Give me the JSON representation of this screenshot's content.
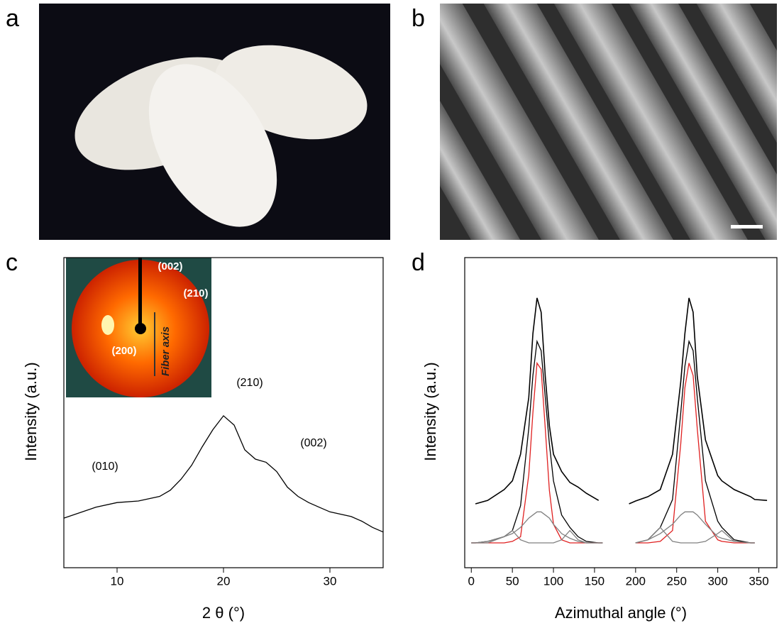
{
  "panel_labels": [
    "a",
    "b",
    "c",
    "d"
  ],
  "chart_data": [
    {
      "type": "line",
      "xlabel": "2 θ (°)",
      "ylabel": "Intensity (a.u.)",
      "annotations": [
        "(010)",
        "(210)",
        "(002)"
      ],
      "inset_labels": [
        "(002)",
        "(210)",
        "(200)",
        "Fiber axis"
      ],
      "x": [
        5,
        8,
        10,
        12,
        14,
        15,
        16,
        17,
        18,
        19,
        20,
        21,
        22,
        23,
        24,
        25,
        26,
        27,
        28,
        29,
        30,
        32,
        33,
        34,
        35
      ],
      "series": [
        {
          "color": "#000000",
          "values": [
            16,
            19.5,
            21,
            21.5,
            23,
            25,
            28.5,
            33,
            39,
            44.5,
            49,
            46,
            38,
            35,
            34,
            31,
            26,
            23,
            21,
            19.5,
            18,
            16.5,
            15,
            13,
            11.5
          ]
        }
      ],
      "xlim": [
        5,
        35
      ],
      "xticks": [
        10,
        20,
        30
      ],
      "ylim": [
        0,
        100
      ]
    },
    {
      "type": "line",
      "xlabel": "Azimuthal angle (°)",
      "ylabel": "Intensity (a.u.)",
      "x": [
        0,
        5,
        20,
        40,
        50,
        60,
        70,
        75,
        80,
        85,
        90,
        95,
        100,
        110,
        120,
        130,
        140,
        155,
        160,
        175,
        192,
        200,
        215,
        230,
        245,
        255,
        260,
        265,
        270,
        275,
        285,
        300,
        305,
        320,
        340,
        345,
        360
      ],
      "series": [
        {
          "color": "#000000",
          "values": [
            null,
            20.6,
            21.7,
            25.2,
            28,
            36.6,
            54.9,
            75.5,
            87,
            82.4,
            61.8,
            45.8,
            36.6,
            31,
            27.5,
            26,
            24,
            21.7,
            null,
            null,
            20.6,
            21.5,
            22.9,
            25.2,
            36.6,
            60,
            75.5,
            87,
            82.4,
            61.8,
            41.2,
            29.7,
            28,
            25.2,
            22.9,
            22,
            21.7
          ]
        },
        {
          "color": "#000000",
          "values": [
            8,
            8,
            8.5,
            10,
            12,
            20,
            45,
            62,
            73,
            70,
            55,
            40,
            28,
            17,
            13,
            10,
            8.5,
            8,
            8,
            null,
            null,
            8,
            9,
            13,
            22,
            50,
            65,
            73,
            70,
            55,
            28,
            15,
            13,
            9,
            8,
            8,
            null
          ]
        },
        {
          "color": "#e02020",
          "values": [
            8,
            8,
            8,
            8,
            8.5,
            10,
            30,
            50,
            66,
            64,
            45,
            25,
            14,
            9,
            8,
            8,
            8,
            8,
            8,
            null,
            null,
            8,
            8,
            8.5,
            12,
            40,
            58,
            66,
            62,
            45,
            15,
            9,
            8.5,
            8,
            8,
            8,
            null
          ]
        },
        {
          "color": "#808080",
          "values": [
            8,
            8,
            8.5,
            10,
            11,
            13,
            16,
            17,
            18,
            18,
            17,
            16,
            14,
            11,
            9.5,
            8.5,
            8,
            8,
            8,
            null,
            null,
            8,
            9,
            11,
            14,
            17,
            18,
            18,
            18,
            17,
            14,
            10,
            9.5,
            8.5,
            8,
            8,
            null
          ]
        },
        {
          "color": "#808080",
          "values": [
            8,
            8,
            8,
            10,
            12,
            9,
            8,
            8,
            8,
            8,
            8,
            8,
            8,
            9,
            12,
            9,
            8,
            8,
            8,
            null,
            null,
            8,
            9,
            13,
            8.5,
            8,
            8,
            8,
            8,
            8,
            8.5,
            11,
            12,
            8.5,
            8,
            8,
            null
          ]
        }
      ],
      "xlim": [
        -8,
        372
      ],
      "xticks": [
        0,
        50,
        100,
        150,
        200,
        250,
        300,
        350
      ],
      "ylim": [
        0,
        100
      ]
    }
  ]
}
